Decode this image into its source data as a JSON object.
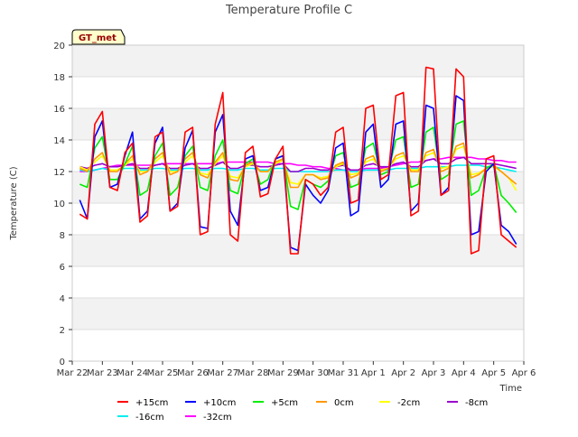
{
  "chart_data": {
    "type": "line",
    "title": "Temperature Profile C",
    "xlabel": "Time",
    "ylabel": "Temperature (C)",
    "ylim": [
      0,
      20
    ],
    "yticks": [
      0,
      2,
      4,
      6,
      8,
      10,
      12,
      14,
      16,
      18,
      20
    ],
    "xlim": [
      "Mar 22",
      "Apr 6"
    ],
    "xticks": [
      "Mar 22",
      "Mar 23",
      "Mar 24",
      "Mar 25",
      "Mar 26",
      "Mar 27",
      "Mar 28",
      "Mar 29",
      "Mar 30",
      "Mar 31",
      "Apr 1",
      "Apr 2",
      "Apr 3",
      "Apr 4",
      "Apr 5",
      "Apr 6"
    ],
    "grid": true,
    "legend_placement": "bottom",
    "annotation": "GT_met",
    "x_days": [
      0.25,
      0.5,
      0.75,
      1.0,
      1.25,
      1.5,
      1.75,
      2.0,
      2.25,
      2.5,
      2.75,
      3.0,
      3.25,
      3.5,
      3.75,
      4.0,
      4.25,
      4.5,
      4.75,
      5.0,
      5.25,
      5.5,
      5.75,
      6.0,
      6.25,
      6.5,
      6.75,
      7.0,
      7.25,
      7.5,
      7.75,
      8.0,
      8.25,
      8.5,
      8.75,
      9.0,
      9.25,
      9.5,
      9.75,
      10.0,
      10.25,
      10.5,
      10.75,
      11.0,
      11.25,
      11.5,
      11.75,
      12.0,
      12.25,
      12.5,
      12.75,
      13.0,
      13.25,
      13.5,
      13.75,
      14.0,
      14.25,
      14.5,
      14.75
    ],
    "series": [
      {
        "name": "+15cm",
        "color": "#ff0000",
        "values": [
          9.3,
          9.0,
          15.0,
          15.8,
          11.0,
          10.8,
          13.2,
          13.8,
          8.8,
          9.2,
          14.2,
          14.5,
          9.5,
          9.8,
          14.5,
          14.8,
          8.0,
          8.2,
          15.0,
          17.0,
          8.0,
          7.6,
          13.2,
          13.6,
          10.4,
          10.6,
          12.8,
          13.6,
          6.8,
          6.8,
          11.5,
          11.2,
          10.5,
          11.0,
          14.5,
          14.8,
          10.0,
          10.2,
          16.0,
          16.2,
          11.5,
          11.8,
          16.8,
          17.0,
          9.2,
          9.5,
          18.6,
          18.5,
          10.5,
          10.8,
          18.5,
          18.0,
          6.8,
          7.0,
          12.8,
          13.0,
          8.0,
          7.6,
          7.2
        ]
      },
      {
        "name": "+10cm",
        "color": "#0000ff",
        "values": [
          10.2,
          9.0,
          14.2,
          15.2,
          11.0,
          11.2,
          13.0,
          14.5,
          9.0,
          9.5,
          13.8,
          14.8,
          9.5,
          10.0,
          13.5,
          14.6,
          8.5,
          8.4,
          14.5,
          15.6,
          9.5,
          8.6,
          12.8,
          13.0,
          10.8,
          11.0,
          12.8,
          13.0,
          7.2,
          7.0,
          11.2,
          10.5,
          10.0,
          10.8,
          13.5,
          13.8,
          9.2,
          9.5,
          14.5,
          15.0,
          11.0,
          11.5,
          15.0,
          15.2,
          9.5,
          10.0,
          16.2,
          16.0,
          10.5,
          11.0,
          16.8,
          16.5,
          8.0,
          8.2,
          12.0,
          12.5,
          8.6,
          8.2,
          7.4
        ]
      },
      {
        "name": "+5cm",
        "color": "#00ee00",
        "values": [
          11.2,
          11.0,
          13.5,
          14.2,
          11.5,
          11.5,
          12.5,
          13.6,
          10.5,
          10.8,
          13.0,
          13.8,
          10.5,
          11.0,
          13.0,
          13.6,
          11.0,
          10.8,
          13.0,
          14.0,
          10.8,
          10.6,
          12.5,
          12.8,
          11.2,
          11.5,
          12.8,
          13.0,
          9.8,
          9.6,
          11.5,
          11.2,
          11.0,
          11.4,
          13.0,
          13.2,
          11.0,
          11.2,
          13.5,
          13.8,
          11.8,
          12.0,
          14.0,
          14.2,
          11.0,
          11.2,
          14.5,
          14.8,
          11.5,
          11.8,
          15.0,
          15.2,
          10.5,
          10.8,
          12.2,
          12.5,
          10.5,
          10.0,
          9.4
        ]
      },
      {
        "name": "0cm",
        "color": "#ff9900",
        "values": [
          12.2,
          12.0,
          12.8,
          13.2,
          12.0,
          12.0,
          12.5,
          13.0,
          11.8,
          12.0,
          12.8,
          13.2,
          11.8,
          12.0,
          12.8,
          13.2,
          11.8,
          11.6,
          12.6,
          13.2,
          11.5,
          11.4,
          12.4,
          12.6,
          12.0,
          12.0,
          12.6,
          12.8,
          11.0,
          11.0,
          11.8,
          11.8,
          11.5,
          11.6,
          12.4,
          12.6,
          11.6,
          11.8,
          12.8,
          13.0,
          12.0,
          12.2,
          13.0,
          13.2,
          12.0,
          12.0,
          13.2,
          13.4,
          12.0,
          12.2,
          13.6,
          13.8,
          11.6,
          11.8,
          12.2,
          12.4,
          12.0,
          11.6,
          11.2
        ]
      },
      {
        "name": "-2cm",
        "color": "#ffff00",
        "values": [
          12.3,
          12.1,
          12.6,
          13.0,
          12.1,
          12.1,
          12.4,
          12.8,
          12.0,
          12.0,
          12.6,
          13.0,
          12.0,
          12.0,
          12.6,
          13.0,
          11.9,
          11.8,
          12.5,
          13.0,
          11.7,
          11.6,
          12.3,
          12.5,
          12.0,
          12.0,
          12.5,
          12.7,
          11.3,
          11.2,
          11.8,
          11.8,
          11.6,
          11.7,
          12.3,
          12.5,
          11.8,
          11.9,
          12.6,
          12.8,
          12.1,
          12.2,
          12.8,
          13.0,
          12.1,
          12.1,
          13.0,
          13.2,
          12.2,
          12.3,
          13.4,
          13.6,
          11.8,
          11.9,
          12.2,
          12.3,
          12.0,
          11.6,
          10.8
        ]
      },
      {
        "name": "-8cm",
        "color": "#9900cc",
        "values": [
          12.3,
          12.2,
          12.4,
          12.5,
          12.3,
          12.3,
          12.4,
          12.5,
          12.2,
          12.2,
          12.4,
          12.5,
          12.2,
          12.2,
          12.4,
          12.5,
          12.2,
          12.2,
          12.4,
          12.6,
          12.2,
          12.2,
          12.4,
          12.4,
          12.3,
          12.3,
          12.4,
          12.5,
          12.0,
          12.0,
          12.2,
          12.2,
          12.1,
          12.1,
          12.3,
          12.4,
          12.1,
          12.1,
          12.4,
          12.5,
          12.3,
          12.3,
          12.5,
          12.6,
          12.3,
          12.3,
          12.7,
          12.8,
          12.5,
          12.5,
          12.8,
          12.9,
          12.5,
          12.5,
          12.5,
          12.5,
          12.4,
          12.3,
          12.2
        ]
      },
      {
        "name": "-16cm",
        "color": "#00eeee",
        "values": [
          12.1,
          12.0,
          12.1,
          12.2,
          12.1,
          12.1,
          12.2,
          12.2,
          12.1,
          12.1,
          12.2,
          12.2,
          12.1,
          12.1,
          12.2,
          12.2,
          12.1,
          12.1,
          12.2,
          12.2,
          12.1,
          12.1,
          12.2,
          12.2,
          12.1,
          12.1,
          12.2,
          12.2,
          12.0,
          12.0,
          12.0,
          12.0,
          12.0,
          12.0,
          12.1,
          12.1,
          12.0,
          12.0,
          12.1,
          12.1,
          12.1,
          12.1,
          12.2,
          12.2,
          12.2,
          12.2,
          12.3,
          12.3,
          12.3,
          12.3,
          12.4,
          12.4,
          12.4,
          12.4,
          12.3,
          12.3,
          12.2,
          12.1,
          12.0
        ]
      },
      {
        "name": "-32cm",
        "color": "#ff00ff",
        "values": [
          12.0,
          12.0,
          12.1,
          12.2,
          12.3,
          12.4,
          12.4,
          12.4,
          12.4,
          12.4,
          12.4,
          12.5,
          12.5,
          12.5,
          12.5,
          12.5,
          12.5,
          12.5,
          12.5,
          12.6,
          12.6,
          12.6,
          12.6,
          12.6,
          12.6,
          12.6,
          12.5,
          12.5,
          12.5,
          12.4,
          12.4,
          12.3,
          12.3,
          12.2,
          12.2,
          12.1,
          12.1,
          12.1,
          12.2,
          12.2,
          12.2,
          12.3,
          12.4,
          12.5,
          12.6,
          12.6,
          12.7,
          12.8,
          12.8,
          12.9,
          12.9,
          12.9,
          12.9,
          12.8,
          12.8,
          12.7,
          12.7,
          12.6,
          12.6
        ]
      }
    ]
  }
}
